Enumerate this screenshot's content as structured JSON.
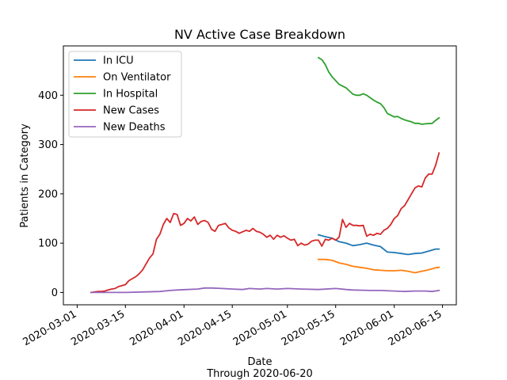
{
  "chart_data": {
    "type": "line",
    "title": "NV Active Case Breakdown",
    "xlabel": "Date",
    "xlabel_sub": "Through 2020-06-20",
    "ylabel": "Patients in Category",
    "x_range": [
      "2020-02-26",
      "2020-06-19"
    ],
    "ylim": [
      -25,
      500
    ],
    "x_ticks": [
      "2020-03-01",
      "2020-03-15",
      "2020-04-01",
      "2020-04-15",
      "2020-05-01",
      "2020-05-15",
      "2020-06-01",
      "2020-06-15"
    ],
    "y_ticks": [
      0,
      100,
      200,
      300,
      400
    ],
    "grid": false,
    "legend_position": "upper-left",
    "series": [
      {
        "name": "In ICU",
        "color": "#1f77b4",
        "x": [
          "2020-05-10",
          "2020-05-12",
          "2020-05-14",
          "2020-05-16",
          "2020-05-18",
          "2020-05-20",
          "2020-05-22",
          "2020-05-24",
          "2020-05-26",
          "2020-05-28",
          "2020-05-30",
          "2020-06-01",
          "2020-06-03",
          "2020-06-05",
          "2020-06-07",
          "2020-06-09",
          "2020-06-11",
          "2020-06-13",
          "2020-06-14"
        ],
        "y": [
          117,
          113,
          110,
          103,
          100,
          95,
          97,
          100,
          96,
          93,
          82,
          81,
          79,
          77,
          79,
          80,
          84,
          88,
          88
        ]
      },
      {
        "name": "On Ventilator",
        "color": "#ff7f0e",
        "x": [
          "2020-05-10",
          "2020-05-12",
          "2020-05-14",
          "2020-05-16",
          "2020-05-18",
          "2020-05-20",
          "2020-05-22",
          "2020-05-24",
          "2020-05-26",
          "2020-05-28",
          "2020-05-30",
          "2020-06-01",
          "2020-06-03",
          "2020-06-05",
          "2020-06-07",
          "2020-06-09",
          "2020-06-11",
          "2020-06-13",
          "2020-06-14"
        ],
        "y": [
          67,
          67,
          65,
          60,
          57,
          53,
          51,
          49,
          46,
          45,
          44,
          44,
          45,
          43,
          40,
          43,
          46,
          50,
          51
        ]
      },
      {
        "name": "In Hospital",
        "color": "#2ca02c",
        "x": [
          "2020-05-10",
          "2020-05-11",
          "2020-05-12",
          "2020-05-13",
          "2020-05-14",
          "2020-05-16",
          "2020-05-18",
          "2020-05-20",
          "2020-05-21",
          "2020-05-22",
          "2020-05-23",
          "2020-05-24",
          "2020-05-25",
          "2020-05-26",
          "2020-05-27",
          "2020-05-28",
          "2020-05-29",
          "2020-05-30",
          "2020-06-01",
          "2020-06-02",
          "2020-06-03",
          "2020-06-04",
          "2020-06-05",
          "2020-06-06",
          "2020-06-07",
          "2020-06-08",
          "2020-06-09",
          "2020-06-10",
          "2020-06-12",
          "2020-06-13",
          "2020-06-14"
        ],
        "y": [
          476,
          472,
          462,
          447,
          437,
          422,
          415,
          402,
          400,
          400,
          403,
          400,
          395,
          390,
          386,
          383,
          375,
          363,
          356,
          357,
          353,
          350,
          348,
          346,
          343,
          343,
          341,
          342,
          343,
          349,
          354
        ]
      },
      {
        "name": "New Cases",
        "color": "#d62728",
        "x": [
          "2020-03-05",
          "2020-03-06",
          "2020-03-07",
          "2020-03-08",
          "2020-03-09",
          "2020-03-10",
          "2020-03-11",
          "2020-03-12",
          "2020-03-13",
          "2020-03-14",
          "2020-03-15",
          "2020-03-16",
          "2020-03-17",
          "2020-03-18",
          "2020-03-19",
          "2020-03-20",
          "2020-03-21",
          "2020-03-22",
          "2020-03-23",
          "2020-03-24",
          "2020-03-25",
          "2020-03-26",
          "2020-03-27",
          "2020-03-28",
          "2020-03-29",
          "2020-03-30",
          "2020-03-31",
          "2020-04-01",
          "2020-04-02",
          "2020-04-03",
          "2020-04-04",
          "2020-04-05",
          "2020-04-06",
          "2020-04-07",
          "2020-04-08",
          "2020-04-09",
          "2020-04-10",
          "2020-04-11",
          "2020-04-12",
          "2020-04-13",
          "2020-04-14",
          "2020-04-15",
          "2020-04-16",
          "2020-04-17",
          "2020-04-18",
          "2020-04-19",
          "2020-04-20",
          "2020-04-21",
          "2020-04-22",
          "2020-04-23",
          "2020-04-24",
          "2020-04-25",
          "2020-04-26",
          "2020-04-27",
          "2020-04-28",
          "2020-04-29",
          "2020-04-30",
          "2020-05-01",
          "2020-05-02",
          "2020-05-03",
          "2020-05-04",
          "2020-05-05",
          "2020-05-06",
          "2020-05-07",
          "2020-05-08",
          "2020-05-09",
          "2020-05-10",
          "2020-05-11",
          "2020-05-12",
          "2020-05-13",
          "2020-05-14",
          "2020-05-15",
          "2020-05-16",
          "2020-05-17",
          "2020-05-18",
          "2020-05-19",
          "2020-05-20",
          "2020-05-21",
          "2020-05-22",
          "2020-05-23",
          "2020-05-24",
          "2020-05-25",
          "2020-05-26",
          "2020-05-27",
          "2020-05-28",
          "2020-05-29",
          "2020-05-30",
          "2020-05-31",
          "2020-06-01",
          "2020-06-02",
          "2020-06-03",
          "2020-06-04",
          "2020-06-05",
          "2020-06-06",
          "2020-06-07",
          "2020-06-08",
          "2020-06-09",
          "2020-06-10",
          "2020-06-11",
          "2020-06-12",
          "2020-06-13",
          "2020-06-14"
        ],
        "y": [
          0,
          1,
          2,
          2,
          3,
          5,
          7,
          8,
          12,
          14,
          16,
          24,
          28,
          32,
          38,
          46,
          58,
          70,
          78,
          108,
          118,
          138,
          150,
          142,
          160,
          158,
          136,
          140,
          150,
          145,
          153,
          138,
          144,
          146,
          142,
          128,
          124,
          136,
          138,
          140,
          131,
          126,
          124,
          120,
          123,
          126,
          124,
          130,
          124,
          122,
          118,
          112,
          116,
          108,
          116,
          112,
          115,
          110,
          106,
          108,
          95,
          100,
          96,
          98,
          104,
          106,
          106,
          94,
          108,
          106,
          110,
          106,
          112,
          148,
          132,
          140,
          136,
          136,
          135,
          136,
          114,
          118,
          116,
          120,
          118,
          126,
          130,
          138,
          150,
          156,
          170,
          176,
          188,
          200,
          212,
          216,
          214,
          232,
          240,
          240,
          258,
          283
        ]
      },
      {
        "name": "New Deaths",
        "color": "#9467bd",
        "x": [
          "2020-03-05",
          "2020-03-10",
          "2020-03-15",
          "2020-03-20",
          "2020-03-25",
          "2020-03-28",
          "2020-03-30",
          "2020-04-02",
          "2020-04-05",
          "2020-04-07",
          "2020-04-09",
          "2020-04-12",
          "2020-04-15",
          "2020-04-18",
          "2020-04-20",
          "2020-04-23",
          "2020-04-25",
          "2020-04-28",
          "2020-05-01",
          "2020-05-05",
          "2020-05-10",
          "2020-05-15",
          "2020-05-18",
          "2020-05-20",
          "2020-05-25",
          "2020-05-28",
          "2020-06-01",
          "2020-06-04",
          "2020-06-07",
          "2020-06-10",
          "2020-06-12",
          "2020-06-14"
        ],
        "y": [
          0,
          0,
          0,
          1,
          2,
          4,
          5,
          6,
          7,
          9,
          9,
          8,
          7,
          6,
          8,
          7,
          8,
          7,
          8,
          7,
          6,
          8,
          6,
          5,
          4,
          4,
          3,
          2,
          3,
          3,
          2,
          4
        ]
      }
    ]
  }
}
